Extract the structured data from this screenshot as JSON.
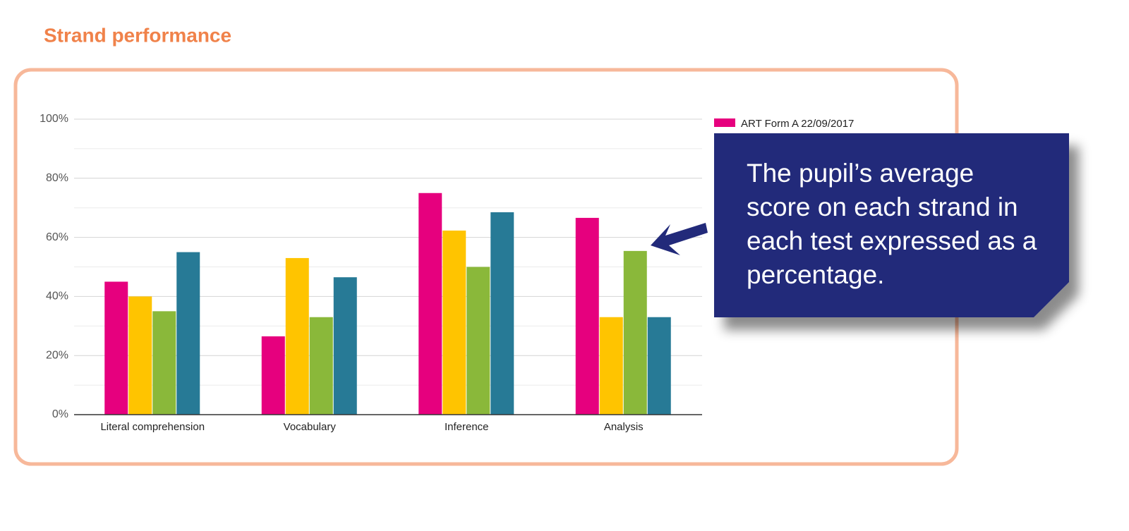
{
  "chart_data": {
    "type": "bar",
    "title": "Strand performance",
    "categories": [
      "Literal comprehension",
      "Vocabulary",
      "Inference",
      "Analysis"
    ],
    "series": [
      {
        "name": "ART Form A 22/09/2017",
        "color": "#e6007e",
        "values": [
          45,
          26.5,
          75,
          66.6
        ]
      },
      {
        "color": "#ffc400",
        "values": [
          40,
          53,
          62.3,
          33
        ]
      },
      {
        "color": "#8ab83a",
        "values": [
          35,
          33,
          50,
          55.4
        ]
      },
      {
        "color": "#277a96",
        "values": [
          55,
          46.5,
          68.5,
          33
        ]
      }
    ],
    "ylim": [
      0,
      100
    ],
    "yticks": [
      {
        "value": 0,
        "label": "0%"
      },
      {
        "value": 20,
        "label": "20%"
      },
      {
        "value": 40,
        "label": "40%"
      },
      {
        "value": 60,
        "label": "60%"
      },
      {
        "value": 80,
        "label": "80%"
      },
      {
        "value": 100,
        "label": "100%"
      }
    ],
    "minor_yticks": [
      10,
      30,
      50,
      70,
      90
    ],
    "grid": true,
    "annotation": "The pupil’s average score on each strand in each test expressed as a percentage."
  }
}
